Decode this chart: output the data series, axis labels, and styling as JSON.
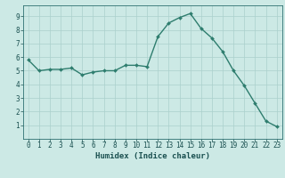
{
  "x": [
    0,
    1,
    2,
    3,
    4,
    5,
    6,
    7,
    8,
    9,
    10,
    11,
    12,
    13,
    14,
    15,
    16,
    17,
    18,
    19,
    20,
    21,
    22,
    23
  ],
  "y": [
    5.8,
    5.0,
    5.1,
    5.1,
    5.2,
    4.7,
    4.9,
    5.0,
    5.0,
    5.4,
    5.4,
    5.3,
    7.5,
    8.5,
    8.9,
    9.2,
    8.1,
    7.4,
    6.4,
    5.0,
    3.9,
    2.6,
    1.3,
    0.9
  ],
  "line_color": "#2e7d6e",
  "marker": "D",
  "marker_size": 2.0,
  "linewidth": 1.0,
  "bg_color": "#cce9e5",
  "grid_color": "#aad0cc",
  "xlabel": "Humidex (Indice chaleur)",
  "xlim": [
    -0.5,
    23.5
  ],
  "ylim": [
    0,
    9.8
  ],
  "xticks": [
    0,
    1,
    2,
    3,
    4,
    5,
    6,
    7,
    8,
    9,
    10,
    11,
    12,
    13,
    14,
    15,
    16,
    17,
    18,
    19,
    20,
    21,
    22,
    23
  ],
  "yticks": [
    1,
    2,
    3,
    4,
    5,
    6,
    7,
    8,
    9
  ],
  "tick_color": "#1a5050",
  "label_fontsize": 6.5,
  "tick_fontsize": 5.5,
  "spine_color": "#2e7070"
}
